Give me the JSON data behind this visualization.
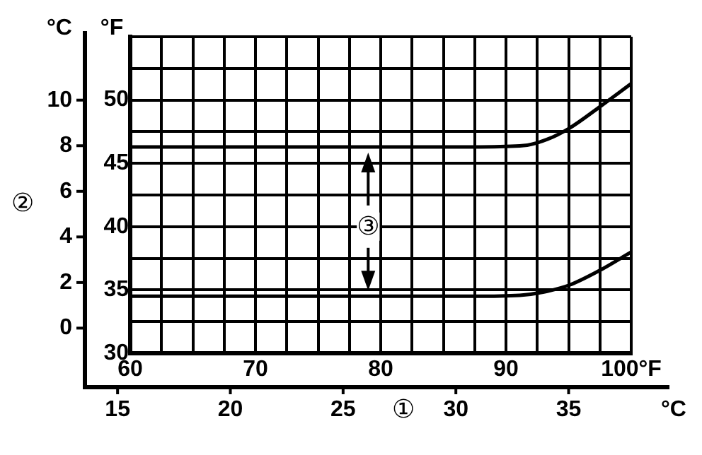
{
  "chart_data": {
    "type": "line",
    "ylabel": "°F",
    "y2label": "°C",
    "x2label": "°C",
    "xlim": [
      60,
      100
    ],
    "xticks": [
      60,
      {
        "value": 62.5,
        "label": null
      },
      {
        "value": 65,
        "label": null
      },
      {
        "value": 67.5,
        "label": null
      },
      70,
      {
        "value": 72.5,
        "label": null
      },
      {
        "value": 75,
        "label": null
      },
      {
        "value": 77.5,
        "label": null
      },
      80,
      {
        "value": 82.5,
        "label": null
      },
      {
        "value": 85,
        "label": null
      },
      {
        "value": 87.5,
        "label": null
      },
      90,
      {
        "value": 92.5,
        "label": null
      },
      {
        "value": 95,
        "label": null
      },
      {
        "value": 97.5,
        "label": null
      },
      {
        "value": 100,
        "label": "100°F"
      }
    ],
    "x2lim": [
      13.74,
      39.47
    ],
    "x2ticks": [
      15,
      20,
      25,
      30,
      35
    ],
    "ylim": [
      30,
      55
    ],
    "yticks": [
      30,
      {
        "value": 32.5,
        "label": null
      },
      35,
      {
        "value": 37.5,
        "label": null
      },
      40,
      {
        "value": 42.5,
        "label": null
      },
      45,
      {
        "value": 47.5,
        "label": null
      },
      50,
      {
        "value": 52.5,
        "label": null
      },
      {
        "value": 55,
        "label": null
      }
    ],
    "y2lim": [
      -2.59,
      12.78
    ],
    "y2ticks": [
      0,
      2,
      4,
      6,
      8,
      10
    ],
    "grid": true,
    "legend": false,
    "marker": "none",
    "line_style": "solid",
    "annotations": [
      "①",
      "②",
      {
        "text": "③",
        "x": 79,
        "y": 40
      }
    ],
    "series": [
      {
        "color": "#000000",
        "x": [
          60,
          70,
          80,
          88,
          91.4,
          93.3,
          95.1,
          97.4,
          100
        ],
        "values": [
          46.3,
          46.3,
          46.3,
          46.3,
          46.4,
          46.9,
          47.8,
          49.4,
          51.3
        ]
      },
      {
        "color": "#000000",
        "x": [
          60,
          70,
          80,
          88,
          91.4,
          93.3,
          95.1,
          97.4,
          100
        ],
        "values": [
          34.5,
          34.5,
          34.5,
          34.5,
          34.6,
          34.9,
          35.4,
          36.5,
          38.0
        ]
      }
    ]
  }
}
